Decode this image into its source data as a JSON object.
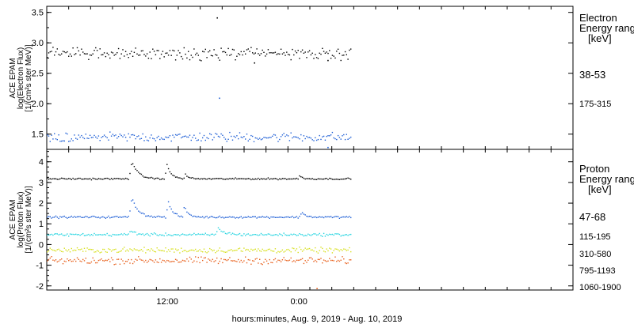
{
  "chart_data": [
    {
      "type": "scatter",
      "panel": "electron",
      "ylabel_lines": [
        "ACE EPAM",
        "log(Electron Flux)",
        "[1/(cm²s ster MeV)]"
      ],
      "ylim": [
        1.25,
        3.6
      ],
      "yticks": [
        1.5,
        2.0,
        2.5,
        3.0,
        3.5
      ],
      "ytick_labels": [
        "1.5",
        "2.0",
        "2.5",
        "3.0",
        "3.5"
      ],
      "legend_title_lines": [
        "Electron",
        "Energy ranges",
        "[keV]"
      ],
      "series": [
        {
          "name": "38-53",
          "color": "#000000",
          "base": 2.83,
          "noise": 0.1,
          "spikes": [
            [
              16.5,
              3.42
            ],
            [
              19.9,
              2.68
            ],
            [
              26.6,
              2.72
            ]
          ]
        },
        {
          "name": "175-315",
          "color": "#1f5fd6",
          "base": 1.46,
          "noise": 0.08,
          "spikes": [
            [
              16.7,
              2.1
            ],
            [
              26.6,
              1.29
            ]
          ]
        }
      ]
    },
    {
      "type": "scatter",
      "panel": "proton",
      "ylabel_lines": [
        "ACE EPAM",
        "log(Proton Flux)",
        "[1/(cm²s ster MeV)]"
      ],
      "ylim": [
        -2.2,
        4.6
      ],
      "yticks": [
        -2,
        -1,
        0,
        1,
        2,
        3,
        4
      ],
      "ytick_labels": [
        "-2",
        "-1",
        "0",
        "1",
        "2",
        "3",
        "4"
      ],
      "xaxis_label": "hours:minutes, Aug.  9, 2019 - Aug. 10, 2019",
      "xlim_hours": [
        1.0,
        49.0
      ],
      "xtick_labels": [
        {
          "hour": 12,
          "label": "12:00"
        },
        {
          "hour": 24,
          "label": "0:00"
        }
      ],
      "data_end_hour": 28.7,
      "legend_title_lines": [
        "Proton",
        "Energy ranges",
        "[keV]"
      ],
      "series": [
        {
          "name": "47-68",
          "color": "#000000",
          "base": 3.2,
          "noise": 0.04,
          "bumps": [
            [
              8.7,
              0.9,
              0.55
            ],
            [
              11.9,
              0.7,
              0.4
            ],
            [
              13.6,
              0.2,
              0.3
            ],
            [
              24.0,
              0.15,
              0.3
            ]
          ]
        },
        {
          "name": "115-195",
          "color": "#1f5fd6",
          "base": 1.35,
          "noise": 0.05,
          "bumps": [
            [
              8.7,
              1.0,
              0.55
            ],
            [
              12.0,
              0.8,
              0.4
            ],
            [
              13.5,
              0.5,
              0.35
            ],
            [
              24.2,
              0.3,
              0.3
            ]
          ]
        },
        {
          "name": "310-580",
          "color": "#25d4e0",
          "base": 0.5,
          "noise": 0.07,
          "bumps": [
            [
              8.6,
              0.2,
              0.5
            ],
            [
              16.6,
              0.3,
              0.6
            ]
          ]
        },
        {
          "name": "795-1193",
          "color": "#d8e020",
          "base": -0.25,
          "noise": 0.13,
          "bumps": []
        },
        {
          "name": "1060-1900",
          "color": "#e8601c",
          "base": -0.75,
          "noise": 0.17,
          "bumps": [],
          "spikes": [
            [
              25.6,
              -2.1
            ]
          ]
        }
      ]
    }
  ]
}
